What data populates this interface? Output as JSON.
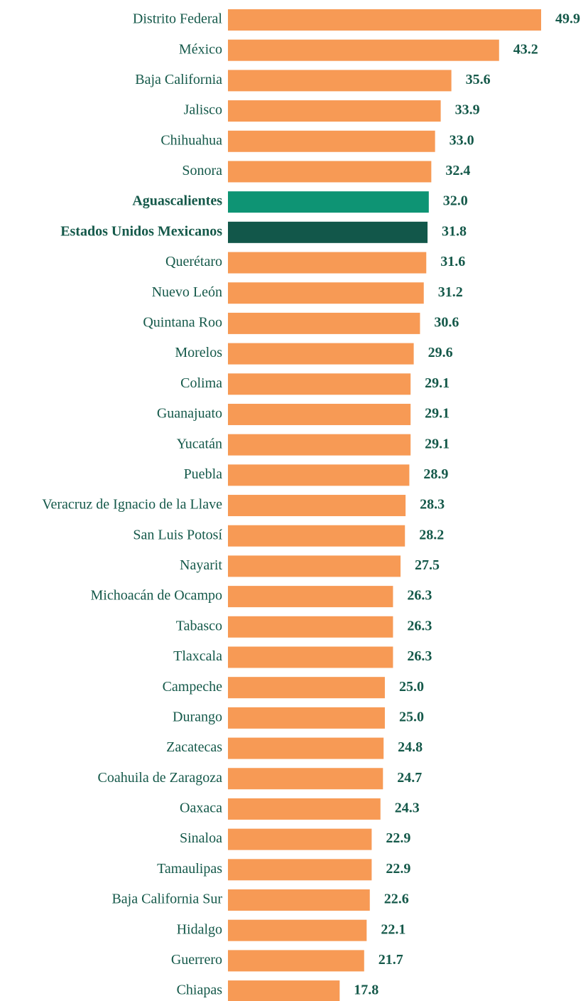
{
  "chart_data": {
    "type": "bar",
    "orientation": "horizontal",
    "categories": [
      "Distrito Federal",
      "México",
      "Baja California",
      "Jalisco",
      "Chihuahua",
      "Sonora",
      "Aguascalientes",
      "Estados Unidos Mexicanos",
      "Querétaro",
      "Nuevo León",
      "Quintana Roo",
      "Morelos",
      "Colima",
      "Guanajuato",
      "Yucatán",
      "Puebla",
      "Veracruz de Ignacio de la Llave",
      "San Luis Potosí",
      "Nayarit",
      "Michoacán de Ocampo",
      "Tabasco",
      "Tlaxcala",
      "Campeche",
      "Durango",
      "Zacatecas",
      "Coahuila de Zaragoza",
      "Oaxaca",
      "Sinaloa",
      "Tamaulipas",
      "Baja California Sur",
      "Hidalgo",
      "Guerrero",
      "Chiapas"
    ],
    "values": [
      49.9,
      43.2,
      35.6,
      33.9,
      33,
      32.4,
      32,
      31.8,
      31.6,
      31.2,
      30.6,
      29.6,
      29.1,
      29.1,
      29.1,
      28.9,
      28.3,
      28.2,
      27.5,
      26.3,
      26.3,
      26.3,
      25,
      25,
      24.8,
      24.7,
      24.3,
      22.9,
      22.9,
      22.6,
      22.1,
      21.7,
      17.8
    ],
    "value_labels": [
      "49.9",
      "43.2",
      "35.6",
      "33.9",
      "33.0",
      "32.4",
      "32.0",
      "31.8",
      "31.6",
      "31.2",
      "30.6",
      "29.6",
      "29.1",
      "29.1",
      "29.1",
      "28.9",
      "28.3",
      "28.2",
      "27.5",
      "26.3",
      "26.3",
      "26.3",
      "25.0",
      "25.0",
      "24.8",
      "24.7",
      "24.3",
      "22.9",
      "22.9",
      "22.6",
      "22.1",
      "21.7",
      "17.8"
    ],
    "color": "#f79a55",
    "colors": [
      "#f79a55",
      "#f79a55",
      "#f79a55",
      "#f79a55",
      "#f79a55",
      "#f79a55",
      "#0e9474",
      "#12574a",
      "#f79a55",
      "#f79a55",
      "#f79a55",
      "#f79a55",
      "#f79a55",
      "#f79a55",
      "#f79a55",
      "#f79a55",
      "#f79a55",
      "#f79a55",
      "#f79a55",
      "#f79a55",
      "#f79a55",
      "#f79a55",
      "#f79a55",
      "#f79a55",
      "#f79a55",
      "#f79a55",
      "#f79a55",
      "#f79a55",
      "#f79a55",
      "#f79a55",
      "#f79a55",
      "#f79a55",
      "#f79a55"
    ]
  }
}
